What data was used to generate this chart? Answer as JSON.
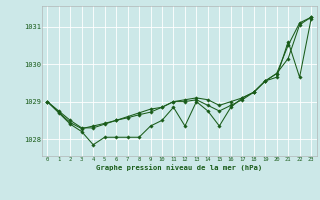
{
  "background_color": "#cce8e8",
  "grid_color": "#ffffff",
  "line_color": "#1a5c1a",
  "title": "Graphe pression niveau de la mer (hPa)",
  "xlim": [
    -0.5,
    23.5
  ],
  "ylim": [
    1027.55,
    1031.55
  ],
  "yticks": [
    1028,
    1029,
    1030,
    1031
  ],
  "xticks": [
    0,
    1,
    2,
    3,
    4,
    5,
    6,
    7,
    8,
    9,
    10,
    11,
    12,
    13,
    14,
    15,
    16,
    17,
    18,
    19,
    20,
    21,
    22,
    23
  ],
  "series_smooth": [
    1029.0,
    1028.72,
    1028.44,
    1028.28,
    1028.35,
    1028.42,
    1028.5,
    1028.57,
    1028.65,
    1028.72,
    1028.85,
    1029.0,
    1029.05,
    1029.1,
    1029.05,
    1028.9,
    1029.0,
    1029.1,
    1029.25,
    1029.55,
    1029.75,
    1030.5,
    1031.1,
    1031.25
  ],
  "series_zigzag": [
    1029.0,
    1028.7,
    1028.4,
    1028.2,
    1027.85,
    1028.05,
    1028.05,
    1028.05,
    1028.05,
    1028.35,
    1028.5,
    1028.85,
    1028.35,
    1029.0,
    1028.75,
    1028.35,
    1028.85,
    1029.1,
    1029.25,
    1029.55,
    1029.65,
    1030.6,
    1029.65,
    1031.2
  ],
  "series_trend": [
    1029.0,
    1028.75,
    1028.5,
    1028.3,
    1028.3,
    1028.4,
    1028.5,
    1028.6,
    1028.7,
    1028.8,
    1028.85,
    1029.0,
    1029.0,
    1029.05,
    1028.9,
    1028.75,
    1028.9,
    1029.05,
    1029.25,
    1029.55,
    1029.75,
    1030.15,
    1031.05,
    1031.25
  ]
}
